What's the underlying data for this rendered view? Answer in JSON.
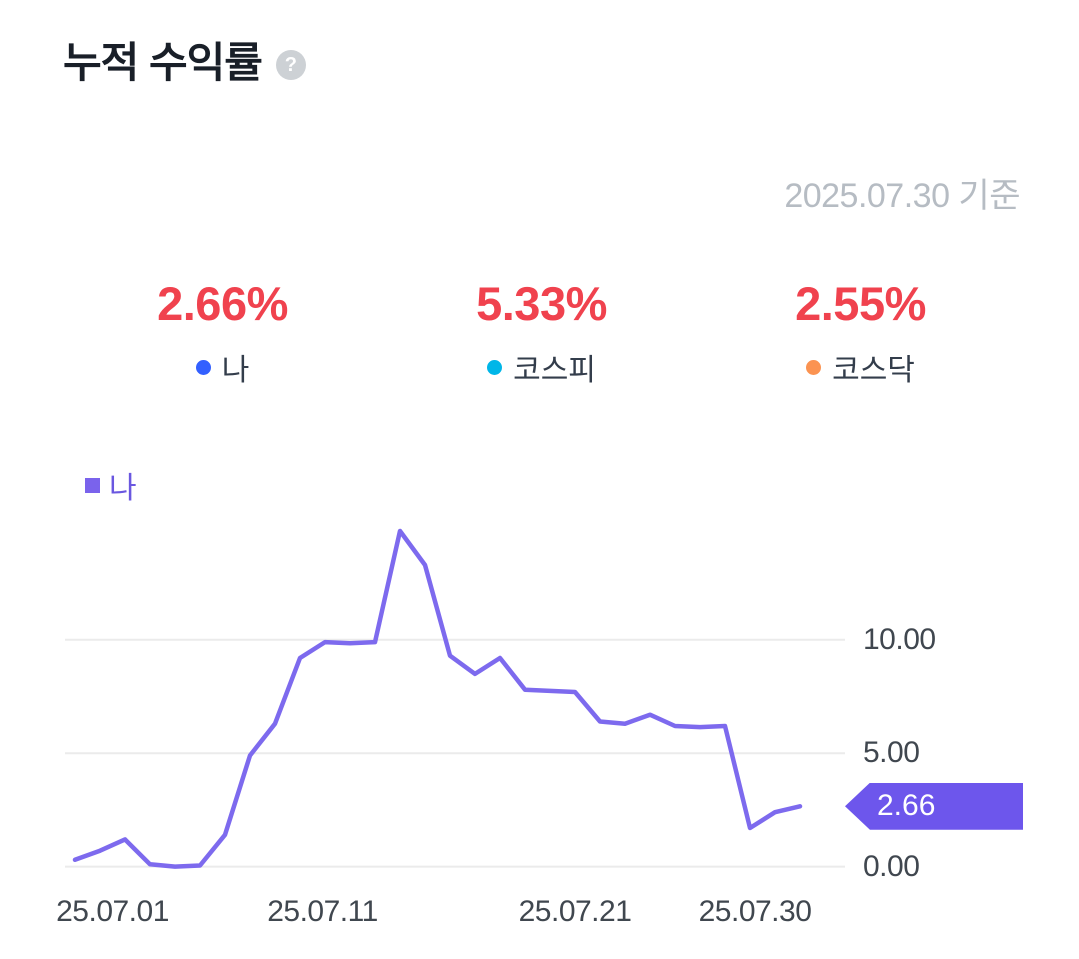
{
  "header": {
    "title": "누적 수익률",
    "help_icon": "?",
    "as_of": "2025.07.30 기준"
  },
  "stats": [
    {
      "value": "2.66%",
      "label": "나",
      "color": "#3360ff"
    },
    {
      "value": "5.33%",
      "label": "코스피",
      "color": "#00b6e8"
    },
    {
      "value": "2.55%",
      "label": "코스닥",
      "color": "#fb9351"
    }
  ],
  "colors": {
    "percent_red": "#f0424e",
    "line": "#7d6aee",
    "badge": "#6d56ec",
    "grid": "#ebebeb",
    "axis_text": "#40474f"
  },
  "chart_data": {
    "type": "line",
    "title": "누적 수익률",
    "legend": "나",
    "series": [
      {
        "name": "나",
        "values": [
          0.3,
          0.7,
          1.2,
          0.1,
          0.0,
          0.05,
          1.4,
          4.9,
          6.3,
          9.2,
          9.9,
          9.85,
          9.9,
          14.8,
          13.3,
          9.3,
          8.5,
          9.2,
          7.8,
          7.75,
          7.7,
          6.4,
          6.3,
          6.7,
          6.2,
          6.15,
          6.2,
          1.7,
          2.4,
          2.66
        ]
      }
    ],
    "yticks": [
      0,
      5,
      10
    ],
    "ytick_labels": [
      "0.00",
      "5.00",
      "10.00"
    ],
    "ymin": -0.9,
    "ymax": 16.3,
    "x_tick_labels": [
      "25.07.01",
      "25.07.11",
      "25.07.21",
      "25.07.30"
    ],
    "x_tick_indices": [
      1.5,
      9.9,
      20,
      27.2
    ],
    "current_value": "2.66",
    "grid": true,
    "legend_position": "top-left"
  }
}
